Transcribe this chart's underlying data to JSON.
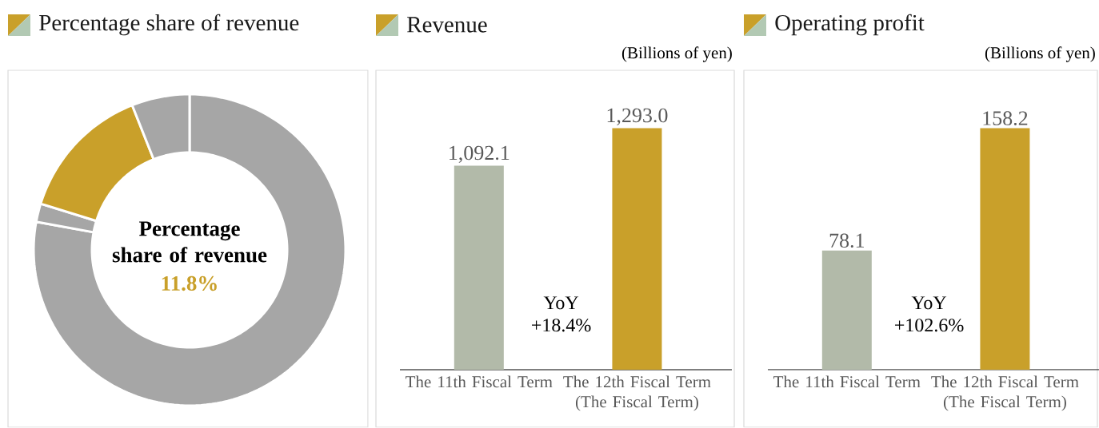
{
  "chart_data": [
    {
      "type": "donut",
      "title": "Percentage share of revenue",
      "categories": [
        null,
        null,
        null,
        null
      ],
      "values": [
        77.9,
        1.9,
        14.2,
        6.0
      ],
      "colors": [
        "#a6a6a6",
        "#a6a6a6",
        "#c9a02a",
        "#a6a6a6"
      ],
      "annotations": [
        "Percentage share of revenue",
        "11.8%"
      ]
    },
    {
      "type": "bar",
      "title": "Revenue",
      "subtitle": "(Billions of yen)",
      "categories": [
        "The 11th Fiscal Term",
        "The 12th Fiscal Term (The Fiscal Term)"
      ],
      "values": [
        1092.1,
        1293.0
      ],
      "value_labels": [
        "1,092.1",
        "1,293.0"
      ],
      "colors": [
        "#b2baa9",
        "#c9a02a"
      ],
      "annotations": [
        "YoY +18.4%"
      ]
    },
    {
      "type": "bar",
      "title": "Operating profit",
      "subtitle": "(Billions of yen)",
      "categories": [
        "The 11th Fiscal Term",
        "The 12th Fiscal Term (The Fiscal Term)"
      ],
      "values": [
        78.1,
        158.2
      ],
      "colors": [
        "#b2baa9",
        "#c9a02a"
      ],
      "data_labels": true,
      "annotations": [
        "YoY +102.6%"
      ]
    }
  ]
}
